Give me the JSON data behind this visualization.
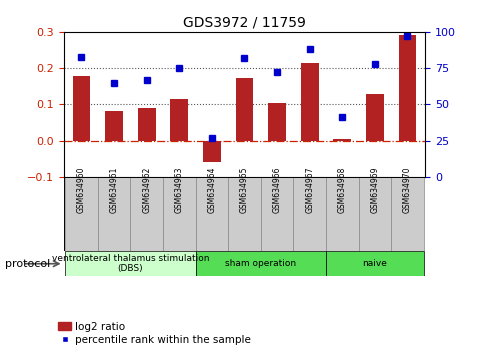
{
  "title": "GDS3972 / 11759",
  "samples": [
    "GSM634960",
    "GSM634961",
    "GSM634962",
    "GSM634963",
    "GSM634964",
    "GSM634965",
    "GSM634966",
    "GSM634967",
    "GSM634968",
    "GSM634969",
    "GSM634970"
  ],
  "log2_ratio": [
    0.178,
    0.083,
    0.09,
    0.115,
    -0.06,
    0.172,
    0.104,
    0.215,
    0.005,
    0.13,
    0.29
  ],
  "percentile_rank": [
    83,
    65,
    67,
    75,
    27,
    82,
    72,
    88,
    41,
    78,
    97
  ],
  "bar_color": "#b22222",
  "dot_color": "#0000cd",
  "left_ylim": [
    -0.1,
    0.3
  ],
  "right_ylim": [
    0,
    100
  ],
  "left_yticks": [
    -0.1,
    0.0,
    0.1,
    0.2,
    0.3
  ],
  "right_yticks": [
    0,
    25,
    50,
    75,
    100
  ],
  "hline_zero_color": "#cc2200",
  "hline_dotted_color": "#555555",
  "protocol_groups": [
    {
      "label": "ventrolateral thalamus stimulation\n(DBS)",
      "start": 0,
      "end": 3,
      "color": "#ccffcc"
    },
    {
      "label": "sham operation",
      "start": 4,
      "end": 7,
      "color": "#55dd55"
    },
    {
      "label": "naive",
      "start": 8,
      "end": 10,
      "color": "#55dd55"
    }
  ],
  "sample_box_color": "#cccccc",
  "sample_box_edge": "#888888",
  "protocol_label": "protocol",
  "legend_bar_label": "log2 ratio",
  "legend_dot_label": "percentile rank within the sample",
  "background_color": "#ffffff",
  "tick_label_color_left": "#cc2200",
  "tick_label_color_right": "#0000cc"
}
